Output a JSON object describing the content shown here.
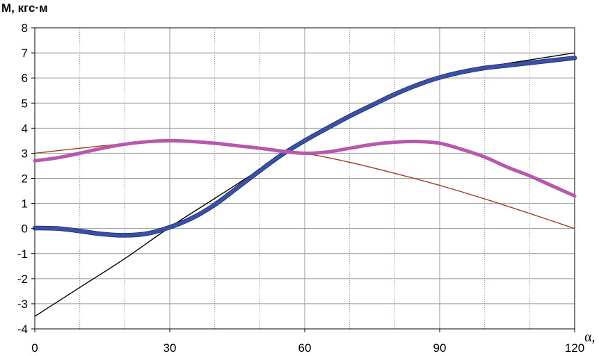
{
  "chart_data": {
    "type": "line",
    "title": "",
    "ylabel": "M, кгс·м",
    "xlabel": "α,",
    "xlim": [
      0,
      120
    ],
    "ylim": [
      -4,
      8
    ],
    "x_ticks": [
      0,
      30,
      60,
      90,
      120
    ],
    "y_ticks": [
      -4,
      -3,
      -2,
      -1,
      0,
      1,
      2,
      3,
      4,
      5,
      6,
      7,
      8
    ],
    "grid": {
      "major_x": [
        30,
        60,
        90
      ],
      "minor_x": [
        10,
        20,
        40,
        50,
        70,
        80,
        100,
        110
      ],
      "major_y": true
    },
    "series": [
      {
        "color": "#9b3f1c",
        "style": "thin",
        "x": [
          0,
          10,
          20,
          30,
          40,
          50,
          60,
          70,
          80,
          90,
          100,
          110,
          120
        ],
        "y": [
          3.0,
          3.2,
          3.38,
          3.48,
          3.41,
          3.24,
          3.0,
          2.64,
          2.2,
          1.72,
          1.18,
          0.6,
          0.0
        ]
      },
      {
        "color": "#000000",
        "style": "thin",
        "x": [
          0,
          10,
          20,
          30,
          40,
          50,
          60,
          70,
          80,
          90,
          100,
          110,
          120
        ],
        "y": [
          -3.5,
          -2.35,
          -1.2,
          0.05,
          1.2,
          2.35,
          3.5,
          4.45,
          5.3,
          6.0,
          6.42,
          6.72,
          7.0
        ]
      },
      {
        "color": "#3a4fa6",
        "style": "thick",
        "x": [
          0,
          5,
          10,
          15,
          20,
          25,
          30,
          35,
          40,
          45,
          50,
          55,
          60,
          65,
          70,
          75,
          80,
          85,
          90,
          95,
          100,
          105,
          110,
          115,
          120
        ],
        "y": [
          0.02,
          0.0,
          -0.1,
          -0.22,
          -0.27,
          -0.2,
          0.05,
          0.42,
          0.95,
          1.62,
          2.3,
          2.95,
          3.5,
          4.0,
          4.48,
          4.92,
          5.35,
          5.72,
          6.02,
          6.24,
          6.4,
          6.5,
          6.6,
          6.7,
          6.8
        ]
      },
      {
        "color": "#b858ac",
        "style": "thick",
        "x": [
          0,
          5,
          10,
          15,
          20,
          25,
          30,
          35,
          40,
          45,
          50,
          55,
          60,
          65,
          70,
          75,
          80,
          85,
          90,
          95,
          100,
          105,
          110,
          115,
          120
        ],
        "y": [
          2.7,
          2.82,
          3.0,
          3.2,
          3.36,
          3.46,
          3.5,
          3.47,
          3.4,
          3.3,
          3.2,
          3.08,
          3.0,
          3.05,
          3.2,
          3.35,
          3.44,
          3.47,
          3.4,
          3.15,
          2.85,
          2.45,
          2.1,
          1.7,
          1.3
        ]
      }
    ]
  }
}
